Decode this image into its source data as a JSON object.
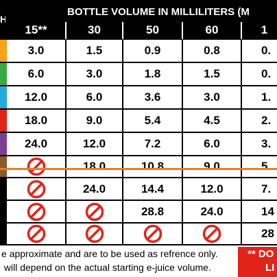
{
  "header": {
    "left": "H",
    "title": "BOTTLE VOLUME IN MILLILITERS (M",
    "columns": [
      "15**",
      "30",
      "50",
      "60",
      "1"
    ]
  },
  "table": {
    "rows": [
      [
        "3.0",
        "1.5",
        "0.9",
        "0.8",
        "0."
      ],
      [
        "6.0",
        "3.0",
        "1.8",
        "1.5",
        "0."
      ],
      [
        "12.0",
        "6.0",
        "3.6",
        "3.0",
        "1."
      ],
      [
        "18.0",
        "9.0",
        "5.4",
        "4.5",
        "2."
      ],
      [
        "24.0",
        "12.0",
        "7.2",
        "6.0",
        "3."
      ],
      [
        null,
        "18.0",
        "10.8",
        "9.0",
        "5."
      ],
      [
        null,
        "24.0",
        "14.4",
        "12.0",
        "7."
      ],
      [
        null,
        null,
        "28.8",
        "24.0",
        "14"
      ],
      [
        null,
        null,
        null,
        null,
        "28"
      ]
    ]
  },
  "footer": {
    "lines": [
      "e approximate and are to be used as refrence only.",
      " will depend on the actual starting e-juice volume."
    ],
    "notice": [
      "** DO",
      "LI"
    ]
  }
}
